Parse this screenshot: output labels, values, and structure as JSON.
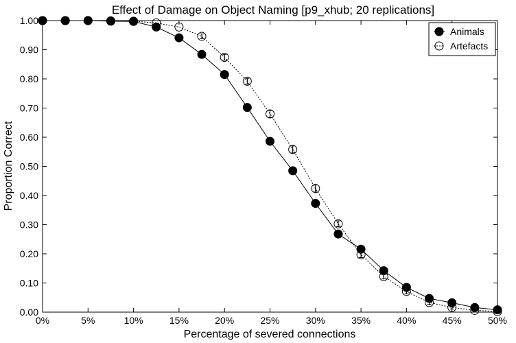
{
  "chart_data": {
    "type": "line",
    "title": "Effect of Damage on Object Naming [p9_xhub; 20 replications]",
    "xlabel": "Percentage of severed connections",
    "ylabel": "Proportion Correct",
    "xlim": [
      0,
      50
    ],
    "ylim": [
      0,
      1
    ],
    "x": [
      0,
      2.5,
      5,
      7.5,
      10,
      12.5,
      15,
      17.5,
      20,
      22.5,
      25,
      27.5,
      30,
      32.5,
      35,
      37.5,
      40,
      42.5,
      45,
      47.5,
      50
    ],
    "x_ticks": [
      0,
      5,
      10,
      15,
      20,
      25,
      30,
      35,
      40,
      45,
      50
    ],
    "x_tick_labels": [
      "0%",
      "5%",
      "10%",
      "15%",
      "20%",
      "25%",
      "30%",
      "35%",
      "40%",
      "45%",
      "50%"
    ],
    "y_ticks": [
      0,
      0.1,
      0.2,
      0.3,
      0.4,
      0.5,
      0.6,
      0.7,
      0.8,
      0.9,
      1.0
    ],
    "y_tick_labels": [
      "0.00",
      "0.10",
      "0.20",
      "0.30",
      "0.40",
      "0.50",
      "0.60",
      "0.70",
      "0.80",
      "0.90",
      "1.00"
    ],
    "legend_position": "top-right",
    "grid": false,
    "series": [
      {
        "name": "Animals",
        "marker": "filled-circle",
        "line_style": "solid",
        "color": "#000000",
        "values": [
          1.0,
          1.0,
          1.0,
          0.998,
          0.997,
          0.978,
          0.941,
          0.884,
          0.815,
          0.702,
          0.586,
          0.485,
          0.373,
          0.268,
          0.216,
          0.142,
          0.085,
          0.047,
          0.032,
          0.016,
          0.008
        ],
        "errors": [
          0,
          0,
          0,
          0,
          0,
          0,
          0,
          0,
          0,
          0,
          0.012,
          0,
          0,
          0,
          0,
          0,
          0,
          0,
          0,
          0,
          0
        ]
      },
      {
        "name": "Artefacts",
        "marker": "open-circle",
        "line_style": "dotted",
        "color": "#000000",
        "values": [
          1.0,
          1.0,
          1.0,
          0.999,
          0.998,
          0.992,
          0.978,
          0.946,
          0.874,
          0.792,
          0.68,
          0.558,
          0.424,
          0.303,
          0.197,
          0.122,
          0.071,
          0.033,
          0.016,
          0.006,
          0.002
        ],
        "errors": [
          0,
          0,
          0,
          0,
          0,
          0,
          0,
          0.008,
          0.01,
          0.01,
          0.012,
          0.012,
          0.012,
          0.01,
          0.01,
          0.008,
          0.008,
          0.006,
          0.005,
          0,
          0
        ]
      }
    ]
  }
}
